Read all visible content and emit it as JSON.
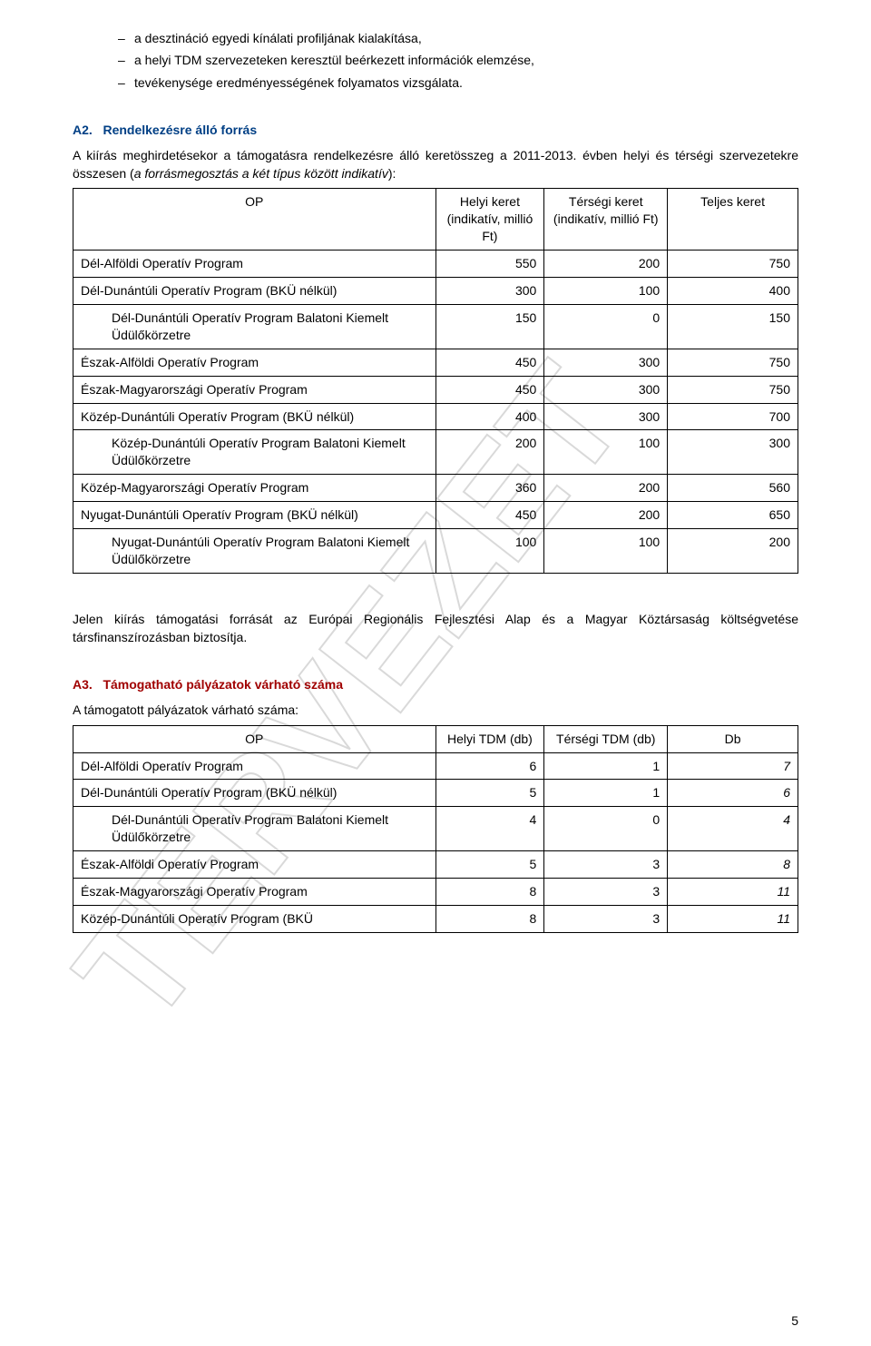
{
  "colors": {
    "a2_heading": "#003f85",
    "a3_heading": "#a00000",
    "text": "#000000",
    "table_border": "#000000",
    "watermark": "#d9d9d9",
    "background": "#ffffff"
  },
  "intro_bullets": [
    "a desztináció egyedi kínálati profiljának kialakítása,",
    "a helyi TDM szervezeteken keresztül beérkezett információk elemzése,",
    "tevékenysége eredményességének folyamatos vizsgálata."
  ],
  "a2": {
    "label": "A2.",
    "title": "Rendelkezésre álló forrás",
    "intro_1": "A kiírás meghirdetésekor a támogatásra rendelkezésre álló keretösszeg a 2011-2013. évben helyi és térségi szervezetekre összesen (",
    "intro_italic": "a forrásmegosztás a két típus között indikatív",
    "intro_2": "):",
    "columns": {
      "op": "OP",
      "helyi": "Helyi keret (indikatív, millió Ft)",
      "tersegi_1": "Térségi keret",
      "tersegi_2": "(indikatív, millió Ft)",
      "teljes": "Teljes keret"
    },
    "rows": [
      {
        "name": "Dél-Alföldi Operatív Program",
        "helyi": 550,
        "tersegi": 200,
        "teljes": 750,
        "indent": false
      },
      {
        "name": "Dél-Dunántúli Operatív Program (BKÜ nélkül)",
        "helyi": 300,
        "tersegi": 100,
        "teljes": 400,
        "indent": false
      },
      {
        "name": "Dél-Dunántúli Operatív Program Balatoni Kiemelt Üdülőkörzetre",
        "helyi": 150,
        "tersegi": 0,
        "teljes": 150,
        "indent": true
      },
      {
        "name": "Észak-Alföldi Operatív Program",
        "helyi": 450,
        "tersegi": 300,
        "teljes": 750,
        "indent": false
      },
      {
        "name": "Észak-Magyarországi Operatív Program",
        "helyi": 450,
        "tersegi": 300,
        "teljes": 750,
        "indent": false
      },
      {
        "name": "Közép-Dunántúli Operatív Program (BKÜ nélkül)",
        "helyi": 400,
        "tersegi": 300,
        "teljes": 700,
        "indent": false
      },
      {
        "name": "Közép-Dunántúli Operatív Program Balatoni Kiemelt Üdülőkörzetre",
        "helyi": 200,
        "tersegi": 100,
        "teljes": 300,
        "indent": true
      },
      {
        "name": "Közép-Magyarországi Operatív Program",
        "helyi": 360,
        "tersegi": 200,
        "teljes": 560,
        "indent": false
      },
      {
        "name": "Nyugat-Dunántúli Operatív Program (BKÜ nélkül)",
        "helyi": 450,
        "tersegi": 200,
        "teljes": 650,
        "indent": false
      },
      {
        "name": "Nyugat-Dunántúli Operatív Program Balatoni Kiemelt Üdülőkörzetre",
        "helyi": 100,
        "tersegi": 100,
        "teljes": 200,
        "indent": true
      }
    ],
    "closing": "Jelen kiírás támogatási forrását az Európai Regionális Fejlesztési Alap és a Magyar Köztársaság költségvetése társfinanszírozásban biztosítja."
  },
  "a3": {
    "label": "A3.",
    "title": "Támogatható pályázatok várható száma",
    "intro": "A támogatott pályázatok várható száma:",
    "columns": {
      "op": "OP",
      "helyi": "Helyi TDM (db)",
      "tersegi": "Térségi TDM (db)",
      "db": "Db"
    },
    "rows": [
      {
        "name": "Dél-Alföldi Operatív Program",
        "helyi": 6,
        "tersegi": 1,
        "db": 7,
        "indent": false
      },
      {
        "name": "Dél-Dunántúli Operatív Program (BKÜ nélkül)",
        "helyi": 5,
        "tersegi": 1,
        "db": 6,
        "indent": false
      },
      {
        "name": "Dél-Dunántúli Operatív Program Balatoni Kiemelt Üdülőkörzetre",
        "helyi": 4,
        "tersegi": 0,
        "db": 4,
        "indent": true
      },
      {
        "name": "Észak-Alföldi Operatív Program",
        "helyi": 5,
        "tersegi": 3,
        "db": 8,
        "indent": false
      },
      {
        "name": "Észak-Magyarországi Operatív Program",
        "helyi": 8,
        "tersegi": 3,
        "db": 11,
        "indent": false
      },
      {
        "name": "Közép-Dunántúli Operatív Program (BKÜ",
        "helyi": 8,
        "tersegi": 3,
        "db": 11,
        "indent": false
      }
    ]
  },
  "page_number": "5",
  "watermark_text": "TERVEZET"
}
